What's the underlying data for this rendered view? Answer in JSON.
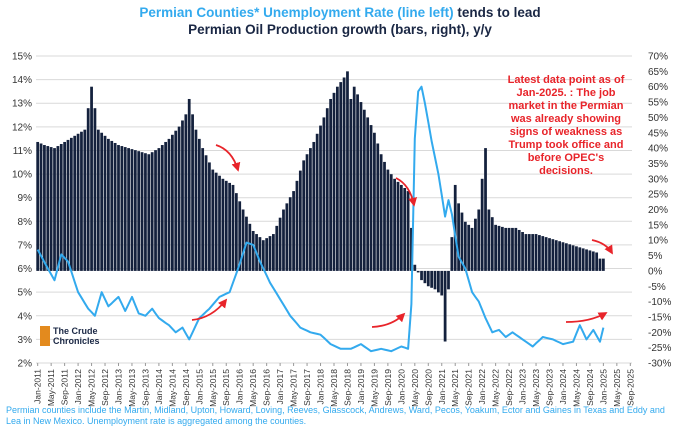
{
  "title": {
    "line1_blue": "Permian Counties* Unemployment Rate (line left)",
    "line1_dark": " tends to lead",
    "line2": "Permian Oil Production growth (bars, right), y/y"
  },
  "annotation": "Latest data point as of Jan-2025. : The job market in the Permian was already showing signs of weakness as Trump took office and before OPEC's decisions.",
  "footer": "Permian counties include the Martin, Midland, Upton, Howard, Loving, Reeves, Glasscock, Andrews, Ward, Pecos, Yoakum, Ector and Gaines in Texas and Eddy and Lea in New Mexico. Unemployment rate is aggregated among the counties.",
  "logo": {
    "line1": "The Crude",
    "line2": "Chronicles"
  },
  "colors": {
    "bars": "#14213d",
    "line": "#33aaee",
    "arrow": "#e8242a",
    "accent": "#e38a1e"
  },
  "chart_data": {
    "type": "bar+line",
    "left_axis": {
      "range": [
        2,
        15
      ],
      "ticks": [
        "2%",
        "3%",
        "4%",
        "5%",
        "6%",
        "7%",
        "8%",
        "9%",
        "10%",
        "11%",
        "12%",
        "13%",
        "14%",
        "15%"
      ]
    },
    "right_axis": {
      "range": [
        -30,
        70
      ],
      "ticks": [
        "70%",
        "65%",
        "60%",
        "55%",
        "50%",
        "45%",
        "40%",
        "35%",
        "30%",
        "25%",
        "20%",
        "15%",
        "10%",
        "5%",
        "0%",
        "-5%",
        "-10%",
        "-15%",
        "-20%",
        "-25%",
        "-30%"
      ]
    },
    "x_ticks": [
      "Jan-2011",
      "May-2011",
      "Sep-2011",
      "Jan-2012",
      "May-2012",
      "Sep-2012",
      "Jan-2013",
      "May-2013",
      "Sep-2013",
      "Jan-2014",
      "May-2014",
      "Sep-2014",
      "Jan-2015",
      "May-2015",
      "Sep-2015",
      "Jan-2016",
      "May-2016",
      "Sep-2016",
      "Jan-2017",
      "May-2017",
      "Sep-2017",
      "Jan-2018",
      "May-2018",
      "Sep-2018",
      "Jan-2019",
      "May-2019",
      "Sep-2019",
      "Jan-2020",
      "May-2020",
      "Sep-2020",
      "Jan-2021",
      "May-2021",
      "Sep-2021",
      "Jan-2022",
      "May-2022",
      "Sep-2022",
      "Jan-2023",
      "May-2023",
      "Sep-2023",
      "Jan-2024",
      "May-2024",
      "Sep-2024",
      "Jan-2025",
      "May-2025",
      "Sep-2025"
    ],
    "grid": true,
    "series": [
      {
        "kind": "bar",
        "axis": "right",
        "x_start": "Jan-2011",
        "frequency": "monthly",
        "anchors": [
          [
            "Jan-2011",
            42
          ],
          [
            "Mar-2011",
            41
          ],
          [
            "Jun-2011",
            40
          ],
          [
            "Sep-2011",
            42
          ],
          [
            "Dec-2011",
            44
          ],
          [
            "Mar-2012",
            46
          ],
          [
            "May-2012",
            60
          ],
          [
            "Jul-2012",
            46
          ],
          [
            "Oct-2012",
            43
          ],
          [
            "Jan-2013",
            41
          ],
          [
            "Apr-2013",
            40
          ],
          [
            "Jul-2013",
            39
          ],
          [
            "Oct-2013",
            38
          ],
          [
            "Jan-2014",
            40
          ],
          [
            "Apr-2014",
            43
          ],
          [
            "Jul-2014",
            47
          ],
          [
            "Sep-2014",
            51
          ],
          [
            "Oct-2014",
            56
          ],
          [
            "Dec-2014",
            46
          ],
          [
            "Feb-2015",
            40
          ],
          [
            "May-2015",
            33
          ],
          [
            "Aug-2015",
            30
          ],
          [
            "Nov-2015",
            28
          ],
          [
            "Feb-2016",
            20
          ],
          [
            "May-2016",
            13
          ],
          [
            "Aug-2016",
            10
          ],
          [
            "Nov-2016",
            12
          ],
          [
            "Feb-2017",
            20
          ],
          [
            "May-2017",
            26
          ],
          [
            "Aug-2017",
            36
          ],
          [
            "Nov-2017",
            42
          ],
          [
            "Feb-2018",
            50
          ],
          [
            "Apr-2018",
            56
          ],
          [
            "Jun-2018",
            60
          ],
          [
            "Aug-2018",
            63
          ],
          [
            "Sep-2018",
            65
          ],
          [
            "Oct-2018",
            56
          ],
          [
            "Nov-2018",
            60
          ],
          [
            "Jan-2019",
            55
          ],
          [
            "Mar-2019",
            50
          ],
          [
            "May-2019",
            45
          ],
          [
            "Jul-2019",
            38
          ],
          [
            "Sep-2019",
            33
          ],
          [
            "Nov-2019",
            30
          ],
          [
            "Jan-2020",
            28
          ],
          [
            "Mar-2020",
            26
          ],
          [
            "May-2020",
            2
          ],
          [
            "Jul-2020",
            -3
          ],
          [
            "Sep-2020",
            -5
          ],
          [
            "Nov-2020",
            -6
          ],
          [
            "Jan-2021",
            -8
          ],
          [
            "Feb-2021",
            -23
          ],
          [
            "Mar-2021",
            -6
          ],
          [
            "May-2021",
            28
          ],
          [
            "Jun-2021",
            22
          ],
          [
            "Aug-2021",
            16
          ],
          [
            "Oct-2021",
            14
          ],
          [
            "Dec-2021",
            20
          ],
          [
            "Feb-2022",
            40
          ],
          [
            "Mar-2022",
            20
          ],
          [
            "May-2022",
            15
          ],
          [
            "Aug-2022",
            14
          ],
          [
            "Nov-2022",
            14
          ],
          [
            "Feb-2023",
            12
          ],
          [
            "May-2023",
            12
          ],
          [
            "Aug-2023",
            11
          ],
          [
            "Nov-2023",
            10
          ],
          [
            "Feb-2024",
            9
          ],
          [
            "May-2024",
            8
          ],
          [
            "Aug-2024",
            7
          ],
          [
            "Nov-2024",
            6
          ],
          [
            "Dec-2024",
            4
          ],
          [
            "Jan-2025",
            4
          ]
        ]
      },
      {
        "kind": "line",
        "axis": "left",
        "x_start": "Jan-2011",
        "frequency": "monthly",
        "anchors": [
          [
            "Jan-2011",
            6.8
          ],
          [
            "Apr-2011",
            6.0
          ],
          [
            "Jun-2011",
            5.5
          ],
          [
            "Aug-2011",
            6.6
          ],
          [
            "Oct-2011",
            6.3
          ],
          [
            "Jan-2012",
            5.0
          ],
          [
            "Apr-2012",
            4.3
          ],
          [
            "Jun-2012",
            4.0
          ],
          [
            "Aug-2012",
            5.0
          ],
          [
            "Oct-2012",
            4.4
          ],
          [
            "Jan-2013",
            4.8
          ],
          [
            "Mar-2013",
            4.2
          ],
          [
            "May-2013",
            4.8
          ],
          [
            "Jul-2013",
            4.1
          ],
          [
            "Sep-2013",
            4.0
          ],
          [
            "Nov-2013",
            4.3
          ],
          [
            "Jan-2014",
            3.9
          ],
          [
            "Apr-2014",
            3.6
          ],
          [
            "Jun-2014",
            3.3
          ],
          [
            "Aug-2014",
            3.5
          ],
          [
            "Oct-2014",
            3.0
          ],
          [
            "Jan-2015",
            3.9
          ],
          [
            "Apr-2015",
            4.3
          ],
          [
            "Jul-2015",
            4.8
          ],
          [
            "Oct-2015",
            5.0
          ],
          [
            "Jan-2016",
            6.2
          ],
          [
            "Mar-2016",
            7.1
          ],
          [
            "May-2016",
            7.0
          ],
          [
            "Jul-2016",
            6.3
          ],
          [
            "Oct-2016",
            5.4
          ],
          [
            "Jan-2017",
            4.7
          ],
          [
            "Apr-2017",
            4.0
          ],
          [
            "Jul-2017",
            3.5
          ],
          [
            "Oct-2017",
            3.3
          ],
          [
            "Jan-2018",
            3.2
          ],
          [
            "Apr-2018",
            2.8
          ],
          [
            "Jul-2018",
            2.6
          ],
          [
            "Oct-2018",
            2.6
          ],
          [
            "Jan-2019",
            2.8
          ],
          [
            "Apr-2019",
            2.5
          ],
          [
            "Jul-2019",
            2.6
          ],
          [
            "Oct-2019",
            2.5
          ],
          [
            "Jan-2020",
            2.7
          ],
          [
            "Mar-2020",
            2.6
          ],
          [
            "Apr-2020",
            4.5
          ],
          [
            "May-2020",
            11.5
          ],
          [
            "Jun-2020",
            13.5
          ],
          [
            "Jul-2020",
            13.7
          ],
          [
            "Aug-2020",
            13.0
          ],
          [
            "Oct-2020",
            11.4
          ],
          [
            "Dec-2020",
            10.0
          ],
          [
            "Feb-2021",
            8.2
          ],
          [
            "Mar-2021",
            8.9
          ],
          [
            "Apr-2021",
            8.3
          ],
          [
            "Jun-2021",
            6.5
          ],
          [
            "Aug-2021",
            6.0
          ],
          [
            "Oct-2021",
            5.0
          ],
          [
            "Dec-2021",
            4.6
          ],
          [
            "Feb-2022",
            3.9
          ],
          [
            "Apr-2022",
            3.3
          ],
          [
            "Jun-2022",
            3.4
          ],
          [
            "Aug-2022",
            3.1
          ],
          [
            "Oct-2022",
            3.3
          ],
          [
            "Jan-2023",
            3.0
          ],
          [
            "Apr-2023",
            2.7
          ],
          [
            "Jul-2023",
            3.1
          ],
          [
            "Oct-2023",
            3.0
          ],
          [
            "Jan-2024",
            2.8
          ],
          [
            "Apr-2024",
            2.9
          ],
          [
            "Jun-2024",
            3.6
          ],
          [
            "Aug-2024",
            3.0
          ],
          [
            "Oct-2024",
            3.4
          ],
          [
            "Dec-2024",
            2.9
          ],
          [
            "Jan-2025",
            3.5
          ]
        ]
      }
    ],
    "arrows": [
      "Dec-2014 top",
      "Oct-2014 bottom",
      "Dec-2019 top",
      "Dec-2019 bottom",
      "Nov-2024 top",
      "Nov-2024 bottom"
    ]
  }
}
